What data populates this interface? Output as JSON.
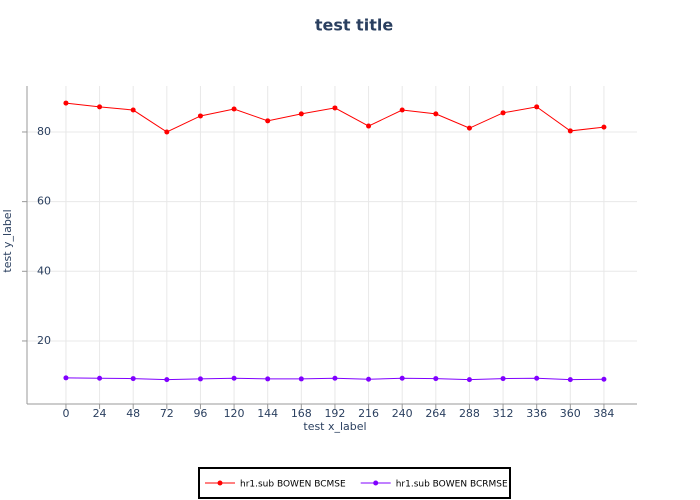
{
  "chart_data": {
    "type": "line",
    "title": "test title",
    "x_label": "test x_label",
    "y_label": "test y_label",
    "x": [
      0,
      24,
      48,
      72,
      96,
      120,
      144,
      168,
      192,
      216,
      240,
      264,
      288,
      312,
      336,
      360,
      384
    ],
    "series": [
      {
        "name": "hr1.sub BOWEN BCMSE",
        "color": "#ff0000",
        "values": [
          88.3,
          87.2,
          86.3,
          80.0,
          84.6,
          86.6,
          83.2,
          85.2,
          86.9,
          81.7,
          86.3,
          85.2,
          81.1,
          85.5,
          87.2,
          80.3,
          81.4
        ]
      },
      {
        "name": "hr1.sub BOWEN BCRMSE",
        "color": "#8000ff",
        "values": [
          9.4,
          9.3,
          9.2,
          8.9,
          9.1,
          9.3,
          9.1,
          9.1,
          9.3,
          9.0,
          9.3,
          9.2,
          8.9,
          9.2,
          9.3,
          8.9,
          9.0
        ]
      }
    ],
    "xlim": [
      -27.8,
      407.6
    ],
    "ylim": [
      1.9,
      93.2
    ],
    "xticks": [
      0,
      24,
      48,
      72,
      96,
      120,
      144,
      168,
      192,
      216,
      240,
      264,
      288,
      312,
      336,
      360,
      384
    ],
    "yticks": [
      20,
      40,
      60,
      80
    ],
    "grid": true,
    "legend": "bottom"
  }
}
